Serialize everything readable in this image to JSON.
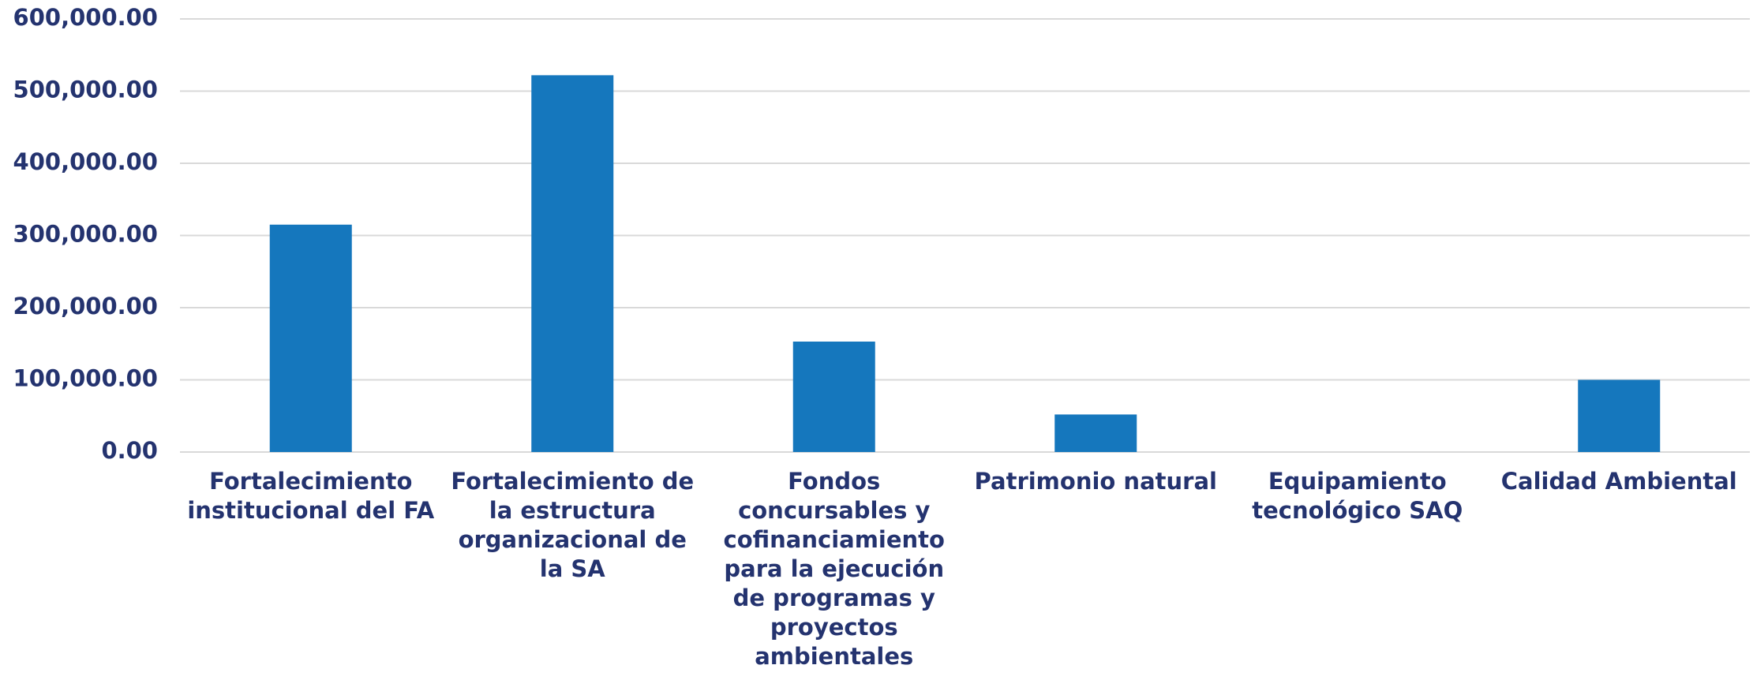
{
  "chart_data": {
    "type": "bar",
    "categories": [
      "Fortalecimiento institucional del FA",
      "Fortalecimiento de la estructura organizacional de la SA",
      "Fondos concursables y cofinanciamiento para la ejecución de programas y proyectos ambientales",
      "Patrimonio natural",
      "Equipamiento tecnológico SAQ",
      "Calidad Ambiental"
    ],
    "values": [
      315000,
      522000,
      153000,
      52000,
      0,
      100000
    ],
    "color": "#1577bd",
    "ylim": [
      0,
      600000
    ],
    "yticks": [
      {
        "value": 0,
        "label": "0.00"
      },
      {
        "value": 100000,
        "label": "100,000.00"
      },
      {
        "value": 200000,
        "label": "200,000.00"
      },
      {
        "value": 300000,
        "label": "300,000.00"
      },
      {
        "value": 400000,
        "label": "400,000.00"
      },
      {
        "value": 500000,
        "label": "500,000.00"
      },
      {
        "value": 600000,
        "label": "600,000.00"
      }
    ],
    "grid": true
  }
}
